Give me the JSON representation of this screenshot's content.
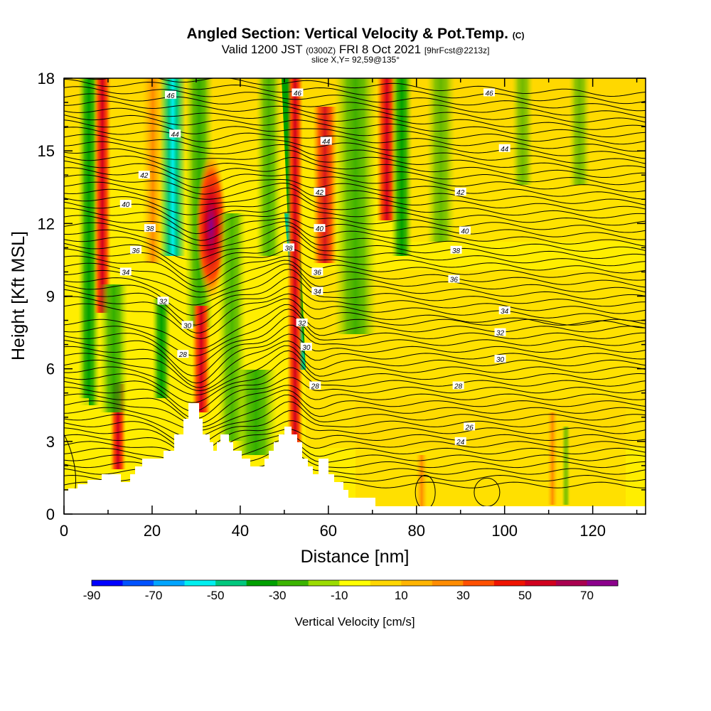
{
  "header": {
    "title_main": "Angled Section: Vertical Velocity & Pot.Temp.",
    "title_mark": "(C)",
    "valid_a": "Valid 1200 JST",
    "valid_b": "(0300Z)",
    "valid_c": "FRI 8 Oct 2021",
    "valid_d": "[9hrFcst@2213z]",
    "slice": "slice X,Y= 92,59@135°"
  },
  "chart_data": {
    "type": "heatmap",
    "title": "Angled Section: Vertical Velocity & Pot.Temp.",
    "xlabel": "Distance [nm]",
    "ylabel": "Height [Kft MSL]",
    "xlim": [
      0,
      132
    ],
    "ylim": [
      0,
      18
    ],
    "x_ticks": [
      "0",
      "20",
      "40",
      "60",
      "80",
      "100",
      "120"
    ],
    "y_ticks": [
      "0",
      "3",
      "6",
      "9",
      "12",
      "15",
      "18"
    ],
    "colorbar": {
      "label": "Vertical Velocity [cm/s]",
      "tick_labels": [
        "-90",
        "-70",
        "-50",
        "-30",
        "-10",
        "10",
        "30",
        "50",
        "70"
      ],
      "bounds": [
        -90,
        80
      ],
      "colors": [
        "#0000ff",
        "#0052ff",
        "#00a5ff",
        "#00f0f0",
        "#00c87d",
        "#00a000",
        "#3cb400",
        "#9bdc00",
        "#ffff00",
        "#ffd700",
        "#ffb400",
        "#ff8c00",
        "#ff5000",
        "#f01400",
        "#d2001e",
        "#aa0050",
        "#8c008c"
      ]
    },
    "series": [
      {
        "name": "Vertical Velocity",
        "kind": "filled contours"
      },
      {
        "name": "Pot.Temp.",
        "kind": "line contours"
      }
    ],
    "contour_labels": [
      {
        "text": "46",
        "x": 24.2,
        "y": 17.3
      },
      {
        "text": "46",
        "x": 53.0,
        "y": 17.4
      },
      {
        "text": "46",
        "x": 96.5,
        "y": 17.4
      },
      {
        "text": "44",
        "x": 25.2,
        "y": 15.7
      },
      {
        "text": "44",
        "x": 59.5,
        "y": 15.4
      },
      {
        "text": "44",
        "x": 100.0,
        "y": 15.1
      },
      {
        "text": "42",
        "x": 18.2,
        "y": 14.0
      },
      {
        "text": "42",
        "x": 58.0,
        "y": 13.3
      },
      {
        "text": "42",
        "x": 90.0,
        "y": 13.3
      },
      {
        "text": "40",
        "x": 14.0,
        "y": 12.8
      },
      {
        "text": "40",
        "x": 58.0,
        "y": 11.8
      },
      {
        "text": "40",
        "x": 91.0,
        "y": 11.7
      },
      {
        "text": "38",
        "x": 19.5,
        "y": 11.8
      },
      {
        "text": "38",
        "x": 51.0,
        "y": 11.0
      },
      {
        "text": "38",
        "x": 89.0,
        "y": 10.9
      },
      {
        "text": "36",
        "x": 16.3,
        "y": 10.9
      },
      {
        "text": "36",
        "x": 57.5,
        "y": 10.0
      },
      {
        "text": "36",
        "x": 88.5,
        "y": 9.7
      },
      {
        "text": "34",
        "x": 14.0,
        "y": 10.0
      },
      {
        "text": "34",
        "x": 57.5,
        "y": 9.2
      },
      {
        "text": "34",
        "x": 100.0,
        "y": 8.4
      },
      {
        "text": "32",
        "x": 22.5,
        "y": 8.8
      },
      {
        "text": "32",
        "x": 54.0,
        "y": 7.9
      },
      {
        "text": "32",
        "x": 99.0,
        "y": 7.5
      },
      {
        "text": "30",
        "x": 28.0,
        "y": 7.8
      },
      {
        "text": "30",
        "x": 55.0,
        "y": 6.9
      },
      {
        "text": "30",
        "x": 99.0,
        "y": 6.4
      },
      {
        "text": "28",
        "x": 27.0,
        "y": 6.6
      },
      {
        "text": "28",
        "x": 57.0,
        "y": 5.3
      },
      {
        "text": "28",
        "x": 89.5,
        "y": 5.3
      },
      {
        "text": "26",
        "x": 92.0,
        "y": 3.6
      },
      {
        "text": "24",
        "x": 90.0,
        "y": 3.0
      }
    ],
    "grid": false
  }
}
